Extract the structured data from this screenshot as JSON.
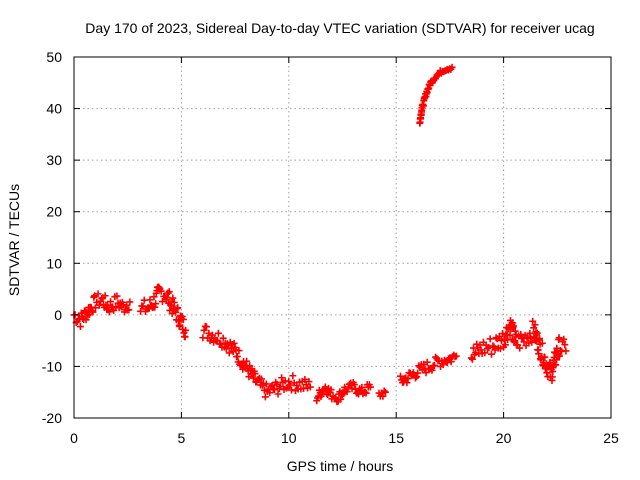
{
  "chart_data": {
    "type": "scatter",
    "title": "Day 170 of 2023, Sidereal Day-to-day VTEC variation (SDTVAR) for receiver ucag",
    "xlabel": "GPS time / hours",
    "ylabel": "SDTVAR / TECUs",
    "xlim": [
      0,
      25
    ],
    "ylim": [
      -20,
      50
    ],
    "xticks": [
      0,
      5,
      10,
      15,
      20,
      25
    ],
    "yticks": [
      -20,
      -10,
      0,
      10,
      20,
      30,
      40,
      50
    ],
    "xtick_labels": [
      "0",
      "5",
      "10",
      "15",
      "20",
      "25"
    ],
    "ytick_labels": [
      "-20",
      "-10",
      "0",
      "10",
      "20",
      "30",
      "40",
      "50"
    ],
    "grid": true,
    "marker": "plus",
    "marker_color": "#ff0000",
    "series": [
      {
        "name": "SDTVAR",
        "segments": [
          {
            "x": [
              0.0,
              0.3,
              0.6,
              1.0,
              1.3,
              1.6,
              2.0,
              2.3,
              2.6
            ],
            "y": [
              0,
              -1,
              0.5,
              2.5,
              3,
              1.5,
              2.5,
              1.5,
              2.5
            ],
            "spread": 1.5
          },
          {
            "x": [
              3.1,
              3.5,
              3.8,
              4.0,
              4.3,
              4.6,
              4.9,
              5.2
            ],
            "y": [
              1,
              1.5,
              3,
              4.5,
              4,
              1.5,
              -0.5,
              -3
            ],
            "spread": 1.8
          },
          {
            "x": [
              6.0,
              6.5,
              7.0,
              7.5,
              8.0,
              8.5,
              9.0,
              9.5,
              10.0,
              10.5,
              11.0
            ],
            "y": [
              -3,
              -4,
              -5,
              -7,
              -10,
              -13,
              -15,
              -14,
              -13,
              -13.5,
              -14
            ],
            "spread": 1.5
          },
          {
            "x": [
              11.3,
              11.7,
              12.0,
              12.3,
              12.6,
              13.0,
              13.4,
              13.8
            ],
            "y": [
              -16,
              -14,
              -15.5,
              -16,
              -14.5,
              -14,
              -15,
              -14
            ],
            "spread": 1.0
          },
          {
            "x": [
              14.2,
              14.5
            ],
            "y": [
              -15.5,
              -15
            ],
            "spread": 0.8
          },
          {
            "x": [
              15.2,
              15.6,
              16.0,
              16.5,
              17.0,
              17.5,
              17.8
            ],
            "y": [
              -13,
              -12,
              -11,
              -10,
              -9,
              -8.5,
              -8
            ],
            "spread": 1.2
          },
          {
            "x": [
              16.1,
              16.2,
              16.4,
              16.6,
              16.9,
              17.2,
              17.6
            ],
            "y": [
              37.5,
              40,
              43,
              45,
              46.5,
              47.5,
              48
            ],
            "spread": 0.4
          },
          {
            "x": [
              18.5,
              19.0,
              19.5,
              20.0,
              20.3,
              20.6,
              21.0,
              21.4,
              21.8,
              22.2,
              22.6,
              22.9
            ],
            "y": [
              -8,
              -6.5,
              -6,
              -4.5,
              -2,
              -5.5,
              -4.5,
              -3,
              -7.5,
              -11.5,
              -6,
              -7
            ],
            "spread": 2.0
          }
        ]
      }
    ]
  }
}
